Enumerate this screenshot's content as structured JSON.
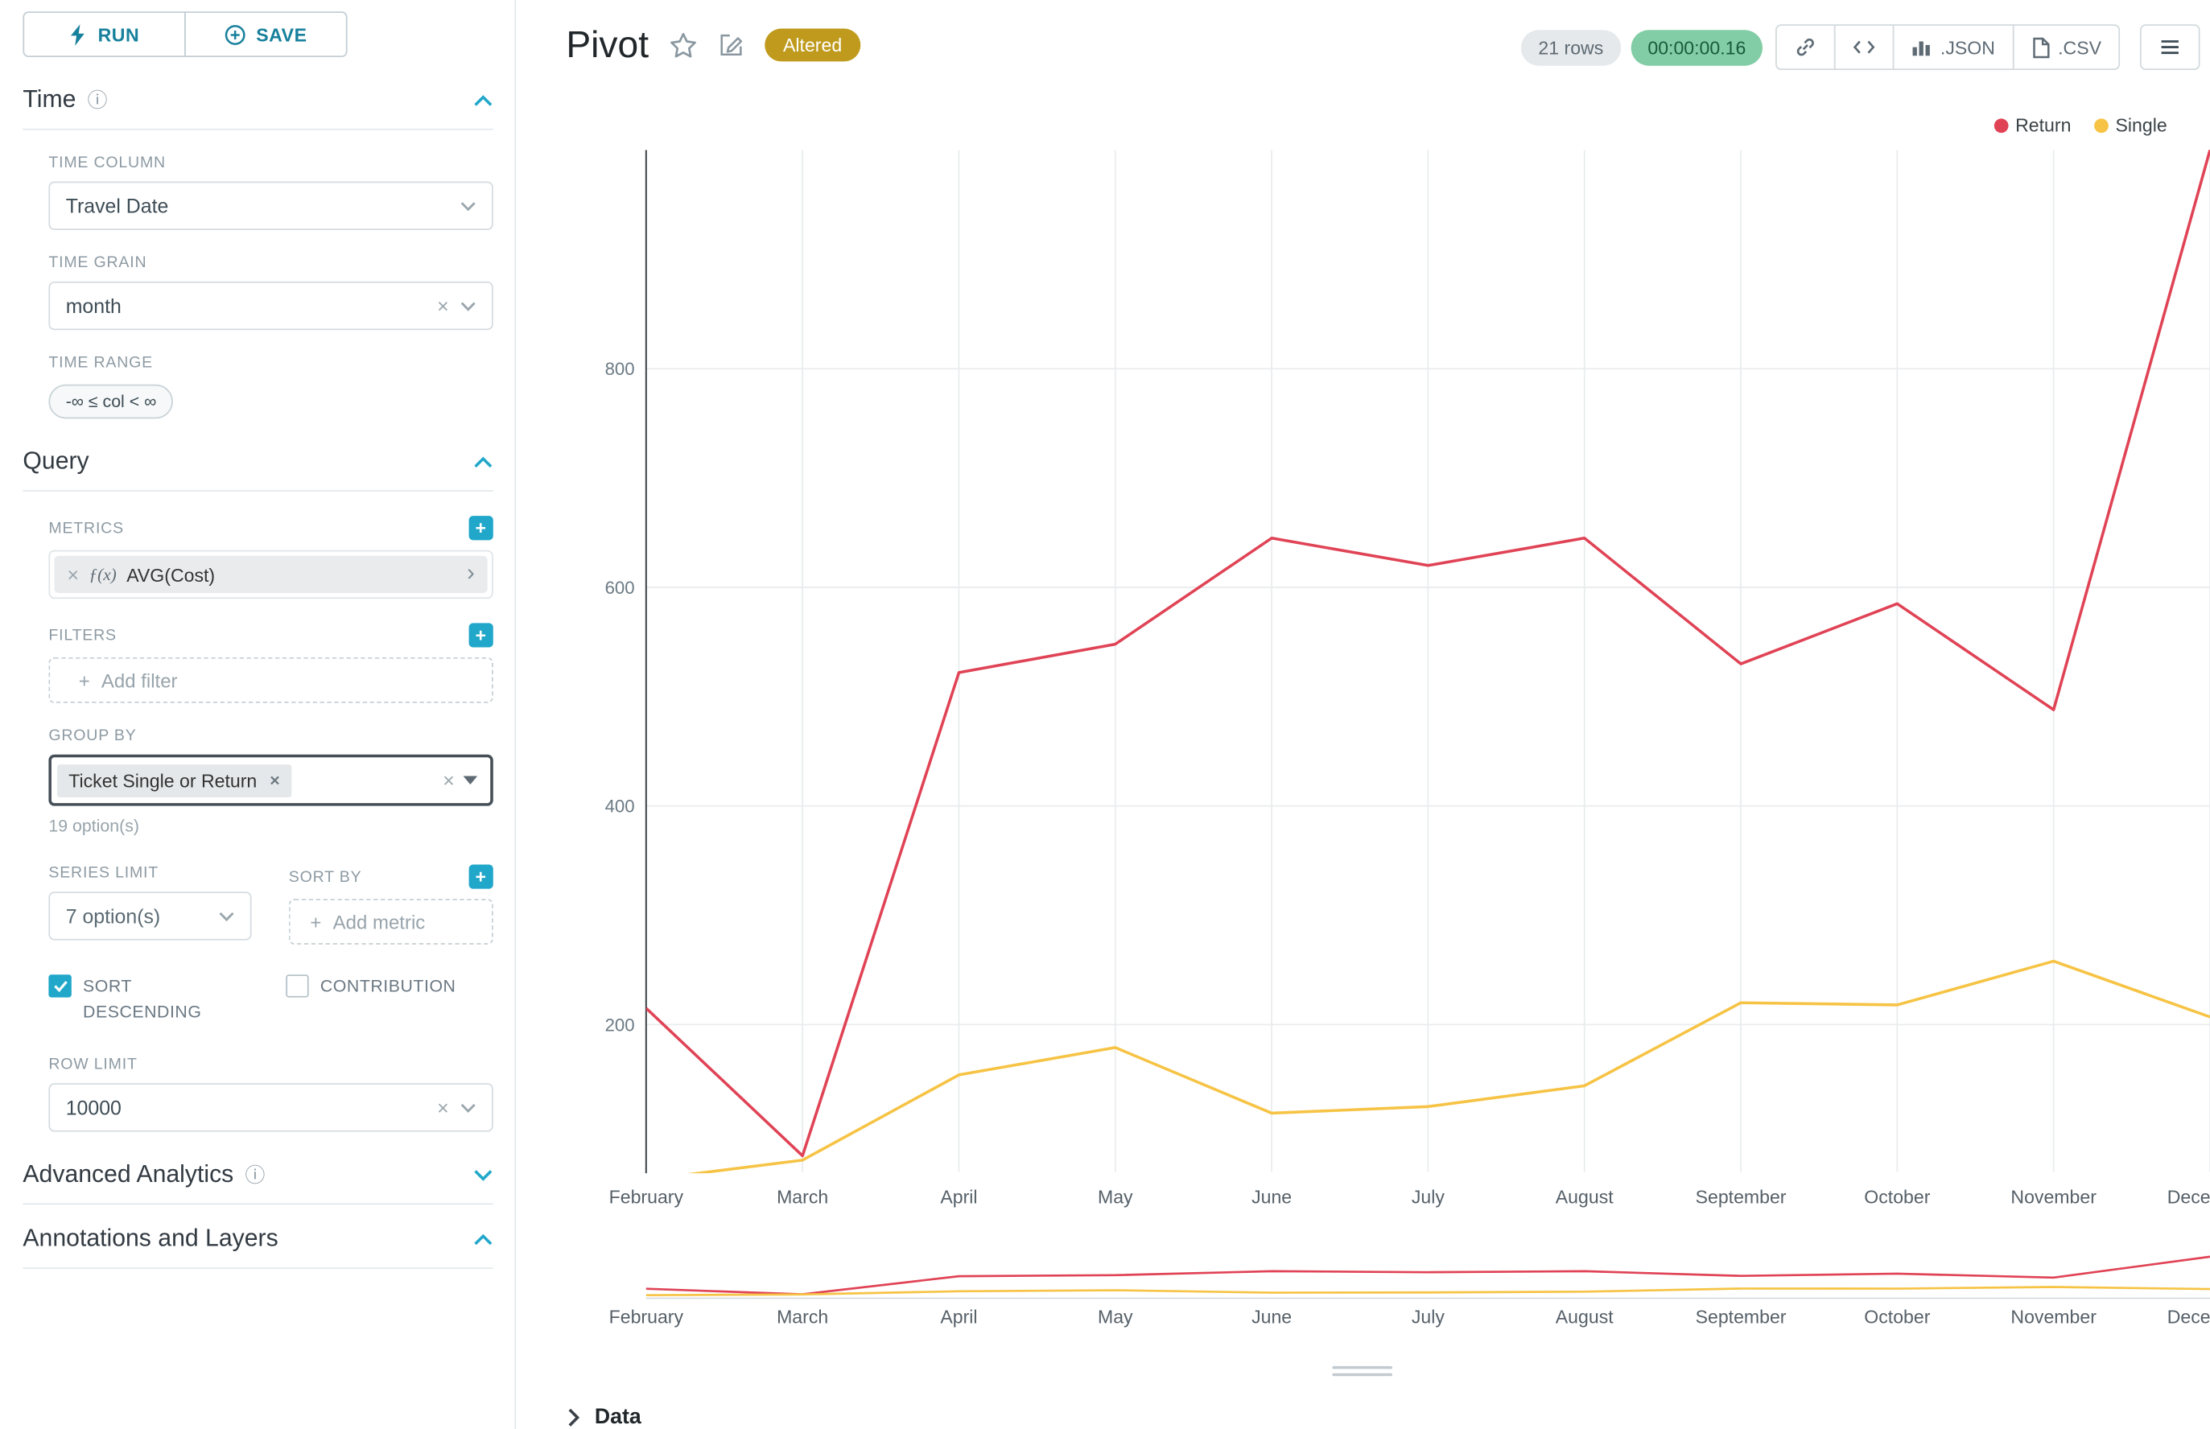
{
  "toolbar": {
    "run": "RUN",
    "save": "SAVE"
  },
  "icons": {
    "info": "ⓘ",
    "close": "×",
    "chevron_right": "›",
    "plus": "+",
    "code": "</>",
    "fx": "ƒ(x)"
  },
  "colors": {
    "accent": "#20a7c9",
    "return_series": "#e04355",
    "single_series": "#f6c344",
    "altered_badge": "#bf9a1c",
    "timer_badge_bg": "#82cda6",
    "rows_badge_bg": "#e6e9eb"
  },
  "panel": {
    "time": {
      "title": "Time",
      "time_column_label": "TIME COLUMN",
      "time_column_value": "Travel Date",
      "time_grain_label": "TIME GRAIN",
      "time_grain_value": "month",
      "time_range_label": "TIME RANGE",
      "time_range_value": "-∞ ≤ col < ∞"
    },
    "query": {
      "title": "Query",
      "metrics_label": "METRICS",
      "metric_name": "AVG(Cost)",
      "filters_label": "FILTERS",
      "add_filter_placeholder": "Add filter",
      "group_by_label": "GROUP BY",
      "group_by_value": "Ticket Single or Return",
      "group_by_options_hint": "19 option(s)",
      "series_limit_label": "SERIES LIMIT",
      "series_limit_value": "7 option(s)",
      "sort_by_label": "SORT BY",
      "add_metric_placeholder": "Add metric",
      "sort_descending_label": "SORT DESCENDING",
      "sort_descending_checked": true,
      "contribution_label": "CONTRIBUTION",
      "contribution_checked": false,
      "row_limit_label": "ROW LIMIT",
      "row_limit_value": "10000"
    },
    "advanced": {
      "title": "Advanced Analytics"
    },
    "annotations": {
      "title": "Annotations and Layers"
    }
  },
  "header": {
    "title": "Pivot",
    "altered_badge": "Altered",
    "rows_badge": "21 rows",
    "timer": "00:00:00.16",
    "json_button": ".JSON",
    "csv_button": ".CSV"
  },
  "bottom": {
    "data_section_label": "Data"
  },
  "chart_data": {
    "type": "line",
    "title": "Pivot",
    "x_categories": [
      "February",
      "March",
      "April",
      "May",
      "June",
      "July",
      "August",
      "September",
      "October",
      "November",
      "December"
    ],
    "series": [
      {
        "name": "Return",
        "color": "#e04355",
        "values": [
          215,
          80,
          522,
          548,
          645,
          620,
          645,
          530,
          585,
          488,
          1000
        ]
      },
      {
        "name": "Single",
        "color": "#f6c344",
        "values": [
          58,
          76,
          154,
          179,
          119,
          125,
          144,
          220,
          218,
          258,
          207
        ]
      }
    ],
    "ylabel": "",
    "xlabel": "",
    "yticks": [
      200,
      400,
      600,
      800
    ],
    "ylim": [
      65,
      1001
    ],
    "grid": true,
    "legend": [
      "Return",
      "Single"
    ],
    "legend_position": "top-right",
    "has_brush_minimap": true
  }
}
